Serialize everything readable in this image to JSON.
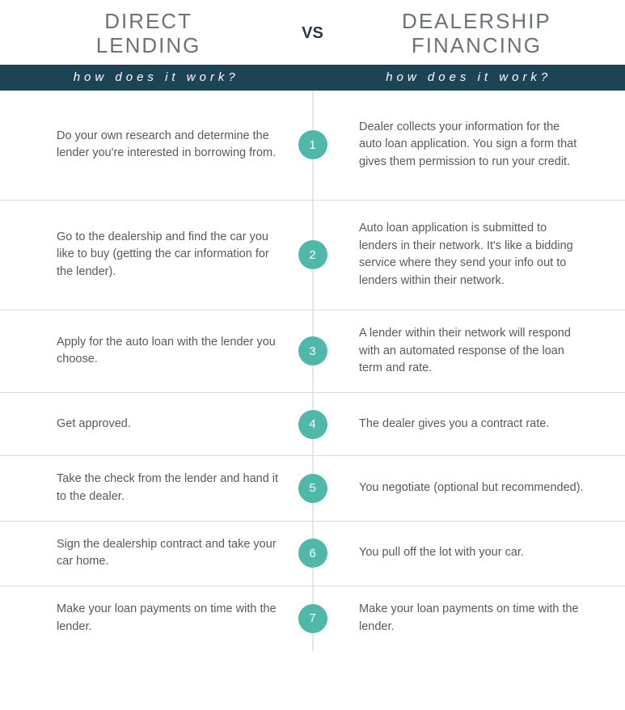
{
  "header": {
    "left_title_line1": "DIRECT",
    "left_title_line2": "LENDING",
    "vs": "VS",
    "right_title_line1": "DEALERSHIP",
    "right_title_line2": "FINANCING",
    "subheader_text": "how does it work?"
  },
  "colors": {
    "subheader_bg": "#1d4455",
    "badge_bg": "#4fb8a8",
    "title_color": "#6b7278",
    "text_color": "#565a5d",
    "divider": "#d7dcdf"
  },
  "steps": [
    {
      "n": "1",
      "left": "Do your own research and determine the lender you're interested in borrowing from.",
      "right": "Dealer collects your information for the auto loan application. You sign a form that gives them permission to run your credit."
    },
    {
      "n": "2",
      "left": "Go to the dealership and find the car you like to buy (getting the car information for the lender).",
      "right": "Auto loan application is submitted to lenders in their network. It's like a bidding service where they send your info out to lenders within their network."
    },
    {
      "n": "3",
      "left": "Apply for the auto loan with the lender you choose.",
      "right": "A lender within their network will respond with an automated response of the loan term and rate."
    },
    {
      "n": "4",
      "left": "Get approved.",
      "right": "The dealer gives you a contract rate."
    },
    {
      "n": "5",
      "left": "Take the check from the lender and hand it to the dealer.",
      "right": "You negotiate (optional but recommended)."
    },
    {
      "n": "6",
      "left": "Sign the dealership contract and take your car home.",
      "right": "You pull off the lot with your car."
    },
    {
      "n": "7",
      "left": "Make your loan payments on time with the lender.",
      "right": "Make your loan payments on time with the lender."
    }
  ]
}
